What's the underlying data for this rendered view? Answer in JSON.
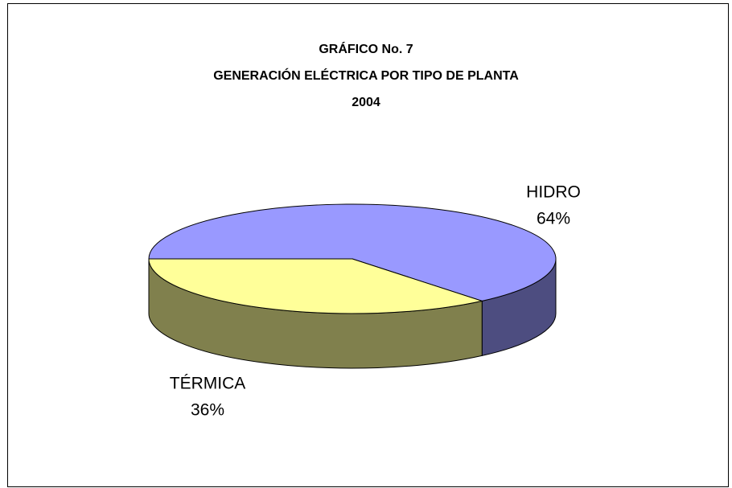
{
  "chart_data": {
    "type": "pie",
    "title": [
      "GRÁFICO  No. 7",
      "GENERACIÓN ELÉCTRICA POR TIPO DE PLANTA",
      "2004"
    ],
    "categories": [
      "HIDRO",
      "TÉRMICA"
    ],
    "values": [
      64,
      36
    ],
    "value_labels": [
      "64%",
      "36%"
    ],
    "colors": [
      "#9999ff",
      "#ffff99"
    ]
  }
}
